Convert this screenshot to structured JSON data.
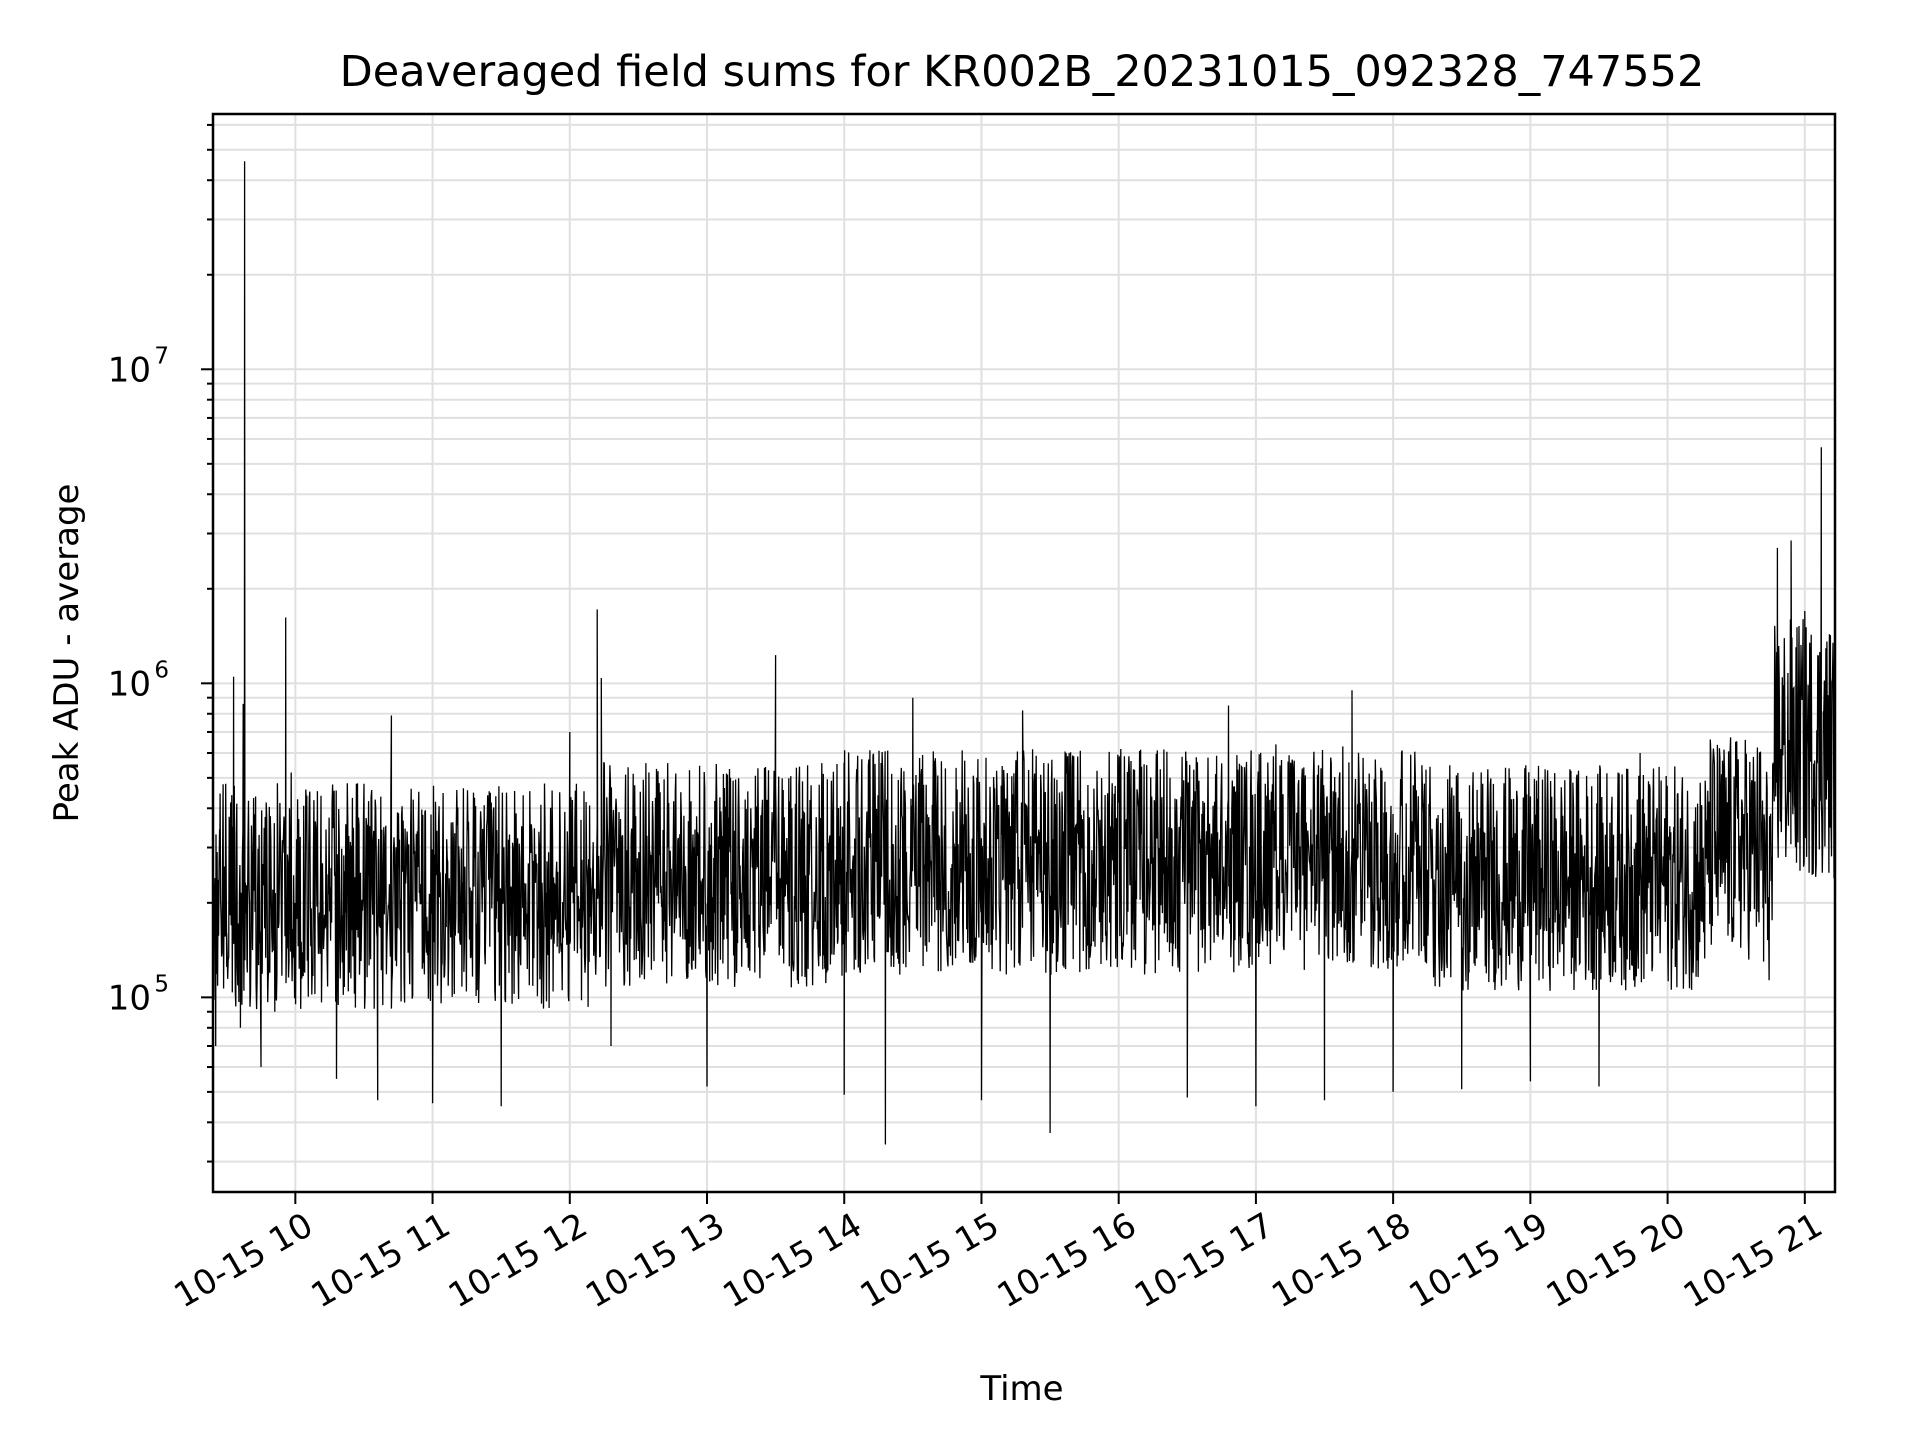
{
  "chart_data": {
    "type": "line",
    "title": "Deaveraged field sums for KR002B_20231015_092328_747552",
    "xlabel": "Time",
    "ylabel": "Peak ADU - average",
    "x_tick_labels": [
      "10-15 10",
      "10-15 11",
      "10-15 12",
      "10-15 13",
      "10-15 14",
      "10-15 15",
      "10-15 16",
      "10-15 17",
      "10-15 18",
      "10-15 19",
      "10-15 20",
      "10-15 21"
    ],
    "x_tick_hours": [
      10,
      11,
      12,
      13,
      14,
      15,
      16,
      17,
      18,
      19,
      20,
      21
    ],
    "xlim_hours": [
      9.4,
      21.22
    ],
    "y_scale": "log",
    "ylim": [
      24000,
      65000000
    ],
    "y_ticks": [
      {
        "base": "10",
        "exp": "5",
        "value": 100000
      },
      {
        "base": "10",
        "exp": "6",
        "value": 1000000
      },
      {
        "base": "10",
        "exp": "7",
        "value": 10000000
      }
    ],
    "line_color": "#000000",
    "grid": true,
    "series": [
      {
        "points_sample": [
          [
            9.42,
            70000
          ],
          [
            9.45,
            310000
          ],
          [
            9.5,
            160000
          ],
          [
            9.55,
            1050000
          ],
          [
            9.6,
            80000
          ],
          [
            9.62,
            860000
          ],
          [
            9.63,
            46000000
          ],
          [
            9.65,
            120000
          ],
          [
            9.75,
            60000
          ],
          [
            9.85,
            90000
          ],
          [
            9.93,
            1620000
          ],
          [
            9.97,
            520000
          ],
          [
            10.0,
            130000
          ],
          [
            10.3,
            55000
          ],
          [
            10.6,
            47000
          ],
          [
            10.7,
            790000
          ],
          [
            11.0,
            46000
          ],
          [
            11.5,
            45000
          ],
          [
            12.0,
            700000
          ],
          [
            12.2,
            1720000
          ],
          [
            12.23,
            1040000
          ],
          [
            12.3,
            70000
          ],
          [
            13.0,
            52000
          ],
          [
            13.5,
            1230000
          ],
          [
            14.0,
            49000
          ],
          [
            14.3,
            34000
          ],
          [
            14.5,
            900000
          ],
          [
            15.0,
            47000
          ],
          [
            15.3,
            820000
          ],
          [
            15.5,
            37000
          ],
          [
            16.0,
            500000
          ],
          [
            16.5,
            48000
          ],
          [
            16.8,
            850000
          ],
          [
            17.0,
            45000
          ],
          [
            17.5,
            47000
          ],
          [
            17.7,
            950000
          ],
          [
            18.0,
            50000
          ],
          [
            18.5,
            51000
          ],
          [
            19.0,
            54000
          ],
          [
            19.5,
            52000
          ],
          [
            19.8,
            600000
          ],
          [
            20.3,
            420000
          ],
          [
            20.7,
            130000
          ],
          [
            20.8,
            2700000
          ],
          [
            20.9,
            2850000
          ],
          [
            21.0,
            1700000
          ],
          [
            21.12,
            5650000
          ],
          [
            21.18,
            650000
          ],
          [
            21.22,
            600000
          ]
        ]
      }
    ]
  }
}
